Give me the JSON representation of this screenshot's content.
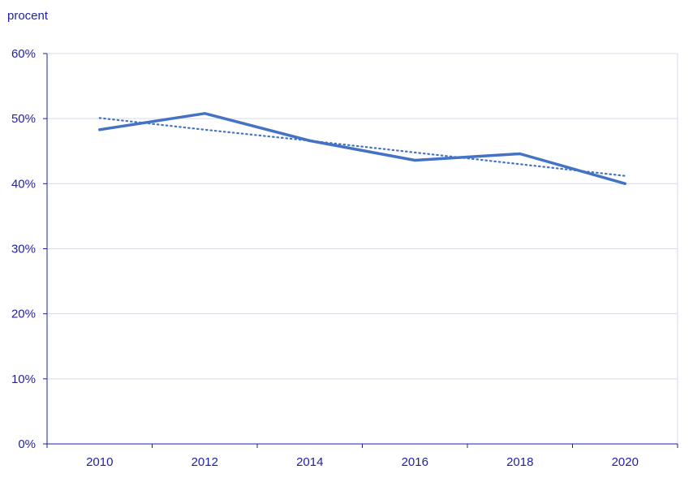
{
  "chart_data": {
    "type": "line",
    "ylabel": "procent",
    "x": [
      2010,
      2012,
      2014,
      2016,
      2018,
      2020
    ],
    "x_tick_labels": [
      "2010",
      "2012",
      "2014",
      "2016",
      "2018",
      "2020"
    ],
    "ylim": [
      0,
      60
    ],
    "y_ticks": [
      0,
      10,
      20,
      30,
      40,
      50,
      60
    ],
    "y_tick_labels": [
      "0%",
      "10%",
      "20%",
      "30%",
      "40%",
      "50%",
      "60%"
    ],
    "grid": true,
    "series": [
      {
        "values": [
          48.3,
          50.8,
          46.6,
          43.6,
          44.6,
          40.0
        ],
        "style": "solid",
        "color": "#4472c4"
      },
      {
        "values": [
          50.1,
          48.3,
          46.6,
          44.8,
          43.0,
          41.2
        ],
        "style": "dotted",
        "color": "#4472c4"
      }
    ]
  },
  "colors": {
    "text": "#1f1fa8",
    "axis": "#1f1fa8",
    "grid": "#d9d9e8",
    "line": "#4472c4"
  }
}
